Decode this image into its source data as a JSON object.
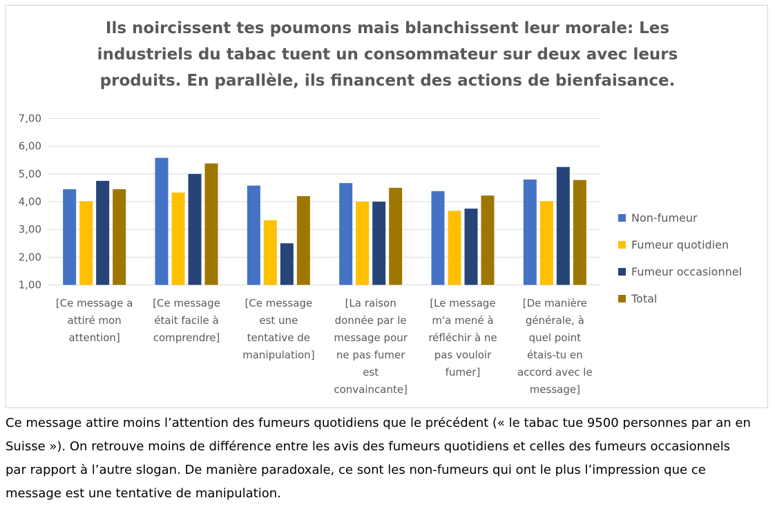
{
  "colors": {
    "accent_gridline": "#d9d9d9",
    "axis_text": "#595959",
    "title_text": "#595959"
  },
  "chart_data": {
    "type": "bar",
    "title": "Ils noircissent tes poumons mais blanchissent leur morale: Les\nindustriels du tabac tuent un consommateur sur deux avec leurs\nproduits. En parallèle, ils financent des actions de bienfaisance.",
    "xlabel": "",
    "ylabel": "",
    "ylim": [
      1,
      7
    ],
    "yticks": [
      "1,00",
      "2,00",
      "3,00",
      "4,00",
      "5,00",
      "6,00",
      "7,00"
    ],
    "grid": true,
    "legend_position": "right",
    "categories": [
      "[Ce message a\nattiré mon\nattention]",
      "[Ce message\nétait facile à\ncomprendre]",
      "[Ce message\nest une\ntentative de\nmanipulation]",
      "[La raison\ndonnée par le\nmessage pour\nne pas fumer\nest\nconvaincante]",
      "[Le message\nm'a mené à\nréfléchir à ne\npas vouloir\nfumer]",
      "[De manière\ngénérale, à\nquel point\nétais-tu en\naccord avec le\nmessage]"
    ],
    "series": [
      {
        "name": "Non-fumeur",
        "color": "#4472c4",
        "values": [
          4.45,
          5.58,
          4.58,
          4.67,
          4.38,
          4.8
        ]
      },
      {
        "name": "Fumeur quotidien",
        "color": "#ffc000",
        "values": [
          4.02,
          4.33,
          3.33,
          4.0,
          3.67,
          4.02
        ]
      },
      {
        "name": "Fumeur occasionnel",
        "color": "#264478",
        "values": [
          4.75,
          5.0,
          2.5,
          4.0,
          3.75,
          5.25
        ]
      },
      {
        "name": "Total",
        "color": "#9e7700",
        "values": [
          4.45,
          5.38,
          4.2,
          4.5,
          4.22,
          4.78
        ]
      }
    ]
  },
  "caption": "Ce message attire moins l’attention des fumeurs quotidiens que le précédent (« le tabac tue 9500 personnes par an en Suisse »). On retrouve moins de différence entre les avis des fumeurs quotidiens et celles des fumeurs occasionnels par rapport à l’autre slogan. De manière paradoxale, ce sont les non-fumeurs qui ont le plus l’impression que ce message est une tentative de manipulation."
}
